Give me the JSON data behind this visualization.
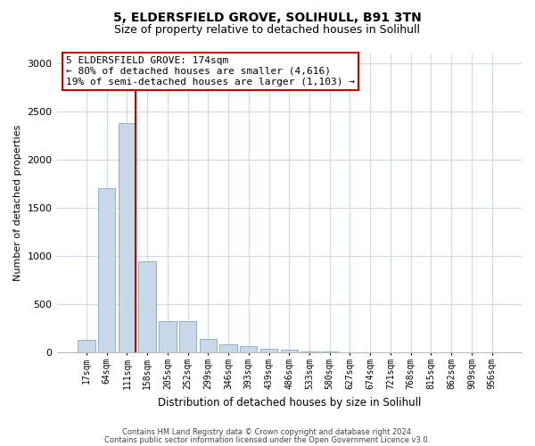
{
  "title1": "5, ELDERSFIELD GROVE, SOLIHULL, B91 3TN",
  "title2": "Size of property relative to detached houses in Solihull",
  "xlabel": "Distribution of detached houses by size in Solihull",
  "ylabel": "Number of detached properties",
  "categories": [
    "17sqm",
    "64sqm",
    "111sqm",
    "158sqm",
    "205sqm",
    "252sqm",
    "299sqm",
    "346sqm",
    "393sqm",
    "439sqm",
    "486sqm",
    "533sqm",
    "580sqm",
    "627sqm",
    "674sqm",
    "721sqm",
    "768sqm",
    "815sqm",
    "862sqm",
    "909sqm",
    "956sqm"
  ],
  "values": [
    130,
    1700,
    2380,
    950,
    330,
    330,
    145,
    90,
    65,
    40,
    30,
    15,
    10,
    5,
    3,
    2,
    1,
    1,
    1,
    0,
    0
  ],
  "bar_color": "#c8d8e8",
  "bar_edge_color": "#8ab4cc",
  "bar_edge_width": 0.7,
  "vline_bin": 2,
  "vline_color": "#cc0000",
  "annotation_text": "5 ELDERSFIELD GROVE: 174sqm\n← 80% of detached houses are smaller (4,616)\n19% of semi-detached houses are larger (1,103) →",
  "annotation_box_color": "#ffffff",
  "annotation_box_edge_color": "#cc0000",
  "ylim": [
    0,
    3100
  ],
  "yticks": [
    0,
    500,
    1000,
    1500,
    2000,
    2500,
    3000
  ],
  "footer1": "Contains HM Land Registry data © Crown copyright and database right 2024.",
  "footer2": "Contains public sector information licensed under the Open Government Licence v3.0.",
  "bg_color": "#ffffff",
  "grid_color": "#d0d8e8",
  "title1_fontsize": 10,
  "title2_fontsize": 9
}
